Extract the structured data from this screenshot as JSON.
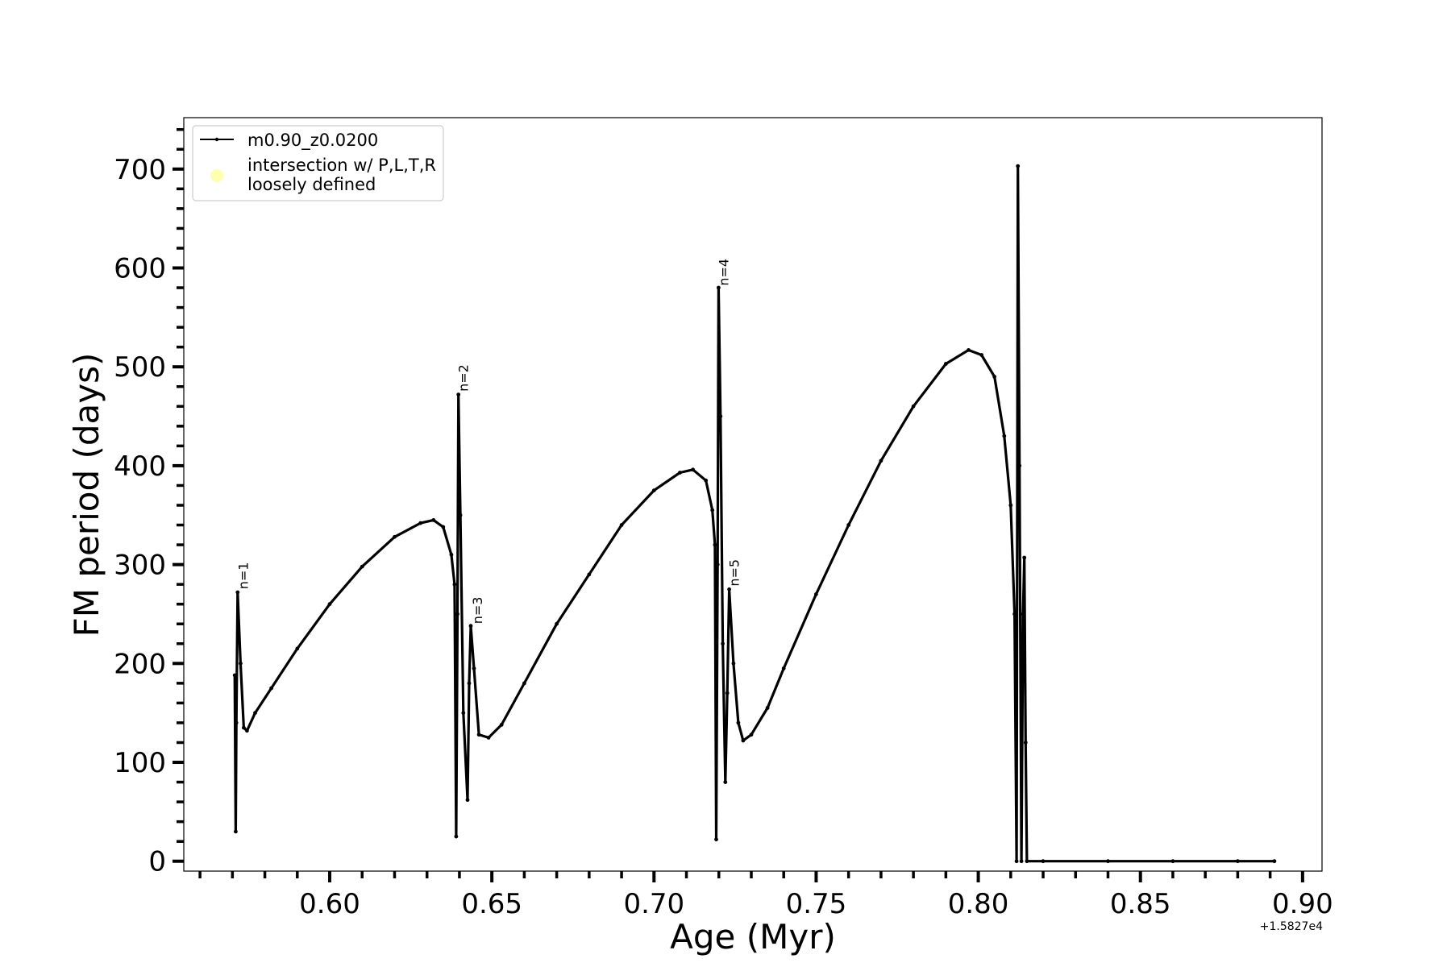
{
  "chart_data": {
    "type": "line",
    "title": "",
    "xlabel": "Age (Myr)",
    "ylabel": "FM period (days)",
    "x_offset_label": "+1.5827e4",
    "xlim": [
      0.555,
      0.906
    ],
    "ylim": [
      -10,
      752
    ],
    "x_ticks": [
      "0.60",
      "0.65",
      "0.70",
      "0.75",
      "0.80",
      "0.85",
      "0.90"
    ],
    "y_ticks": [
      "0",
      "100",
      "200",
      "300",
      "400",
      "500",
      "600",
      "700"
    ],
    "grid": false,
    "legend_position": "upper-left",
    "legend": [
      {
        "label": "m0.90_z0.0200",
        "marker": "line-with-dots",
        "color": "#000000"
      },
      {
        "label": "intersection w/ P,L,T,R\nloosely defined",
        "marker": "circle",
        "color": "#ffffb0"
      }
    ],
    "annotations": [
      {
        "text": "n=1",
        "x": 0.5718,
        "y": 275
      },
      {
        "text": "n=2",
        "x": 0.6397,
        "y": 475
      },
      {
        "text": "n=3",
        "x": 0.644,
        "y": 240
      },
      {
        "text": "n=4",
        "x": 0.7199,
        "y": 582
      },
      {
        "text": "n=5",
        "x": 0.7232,
        "y": 278
      }
    ],
    "series": [
      {
        "name": "m0.90_z0.0200",
        "color": "#000000",
        "points": [
          [
            0.5707,
            188
          ],
          [
            0.571,
            30
          ],
          [
            0.5712,
            140
          ],
          [
            0.5716,
            272
          ],
          [
            0.5725,
            200
          ],
          [
            0.5735,
            135
          ],
          [
            0.5745,
            132
          ],
          [
            0.577,
            150
          ],
          [
            0.582,
            175
          ],
          [
            0.59,
            215
          ],
          [
            0.6,
            260
          ],
          [
            0.61,
            298
          ],
          [
            0.62,
            328
          ],
          [
            0.628,
            342
          ],
          [
            0.632,
            345
          ],
          [
            0.635,
            338
          ],
          [
            0.6375,
            310
          ],
          [
            0.6385,
            280
          ],
          [
            0.639,
            25
          ],
          [
            0.6394,
            250
          ],
          [
            0.6397,
            472
          ],
          [
            0.6403,
            350
          ],
          [
            0.6412,
            150
          ],
          [
            0.6425,
            62
          ],
          [
            0.643,
            180
          ],
          [
            0.6435,
            238
          ],
          [
            0.6445,
            195
          ],
          [
            0.646,
            128
          ],
          [
            0.649,
            125
          ],
          [
            0.653,
            138
          ],
          [
            0.66,
            180
          ],
          [
            0.67,
            240
          ],
          [
            0.68,
            290
          ],
          [
            0.69,
            340
          ],
          [
            0.7,
            375
          ],
          [
            0.708,
            393
          ],
          [
            0.712,
            396
          ],
          [
            0.716,
            385
          ],
          [
            0.718,
            355
          ],
          [
            0.7188,
            320
          ],
          [
            0.7192,
            22
          ],
          [
            0.7196,
            300
          ],
          [
            0.7199,
            580
          ],
          [
            0.7205,
            450
          ],
          [
            0.7212,
            220
          ],
          [
            0.722,
            80
          ],
          [
            0.7226,
            170
          ],
          [
            0.7232,
            275
          ],
          [
            0.7245,
            200
          ],
          [
            0.726,
            140
          ],
          [
            0.7275,
            122
          ],
          [
            0.73,
            128
          ],
          [
            0.735,
            155
          ],
          [
            0.74,
            195
          ],
          [
            0.75,
            270
          ],
          [
            0.76,
            340
          ],
          [
            0.77,
            405
          ],
          [
            0.78,
            460
          ],
          [
            0.79,
            503
          ],
          [
            0.797,
            517
          ],
          [
            0.801,
            512
          ],
          [
            0.805,
            490
          ],
          [
            0.808,
            430
          ],
          [
            0.81,
            360
          ],
          [
            0.8112,
            250
          ],
          [
            0.8118,
            0
          ],
          [
            0.8122,
            703
          ],
          [
            0.8127,
            400
          ],
          [
            0.8133,
            0
          ],
          [
            0.8138,
            250
          ],
          [
            0.8142,
            307
          ],
          [
            0.8146,
            120
          ],
          [
            0.815,
            0
          ],
          [
            0.82,
            0
          ],
          [
            0.84,
            0
          ],
          [
            0.86,
            0
          ],
          [
            0.88,
            0
          ],
          [
            0.8913,
            0
          ]
        ]
      }
    ]
  }
}
